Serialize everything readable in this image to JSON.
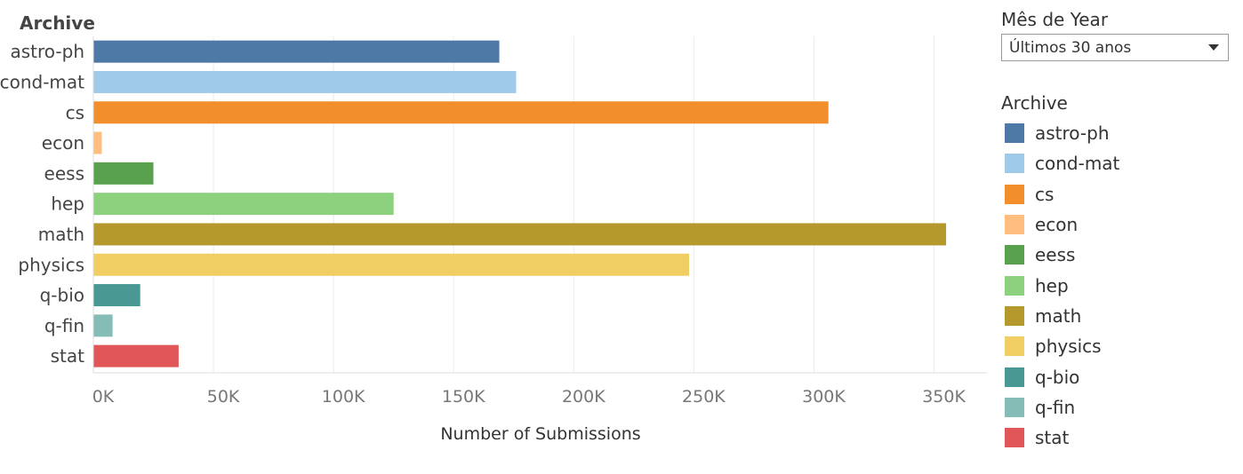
{
  "filter": {
    "title": "Mês de Year",
    "selected": "Últimos 30 anos"
  },
  "legend": {
    "title": "Archive",
    "items": [
      {
        "label": "astro-ph",
        "color": "#4e79a7"
      },
      {
        "label": "cond-mat",
        "color": "#a0cbe8"
      },
      {
        "label": "cs",
        "color": "#f28e2b"
      },
      {
        "label": "econ",
        "color": "#ffbe7d"
      },
      {
        "label": "eess",
        "color": "#59a14f"
      },
      {
        "label": "hep",
        "color": "#8cd17d"
      },
      {
        "label": "math",
        "color": "#b6992d"
      },
      {
        "label": "physics",
        "color": "#f1ce63"
      },
      {
        "label": "q-bio",
        "color": "#499894"
      },
      {
        "label": "q-fin",
        "color": "#86bcb6"
      },
      {
        "label": "stat",
        "color": "#e15759"
      }
    ]
  },
  "chart_data": {
    "type": "bar",
    "orientation": "horizontal",
    "row_header": "Archive",
    "categories": [
      "astro-ph",
      "cond-mat",
      "cs",
      "econ",
      "eess",
      "hep",
      "math",
      "physics",
      "q-bio",
      "q-fin",
      "stat"
    ],
    "values": [
      169000,
      176000,
      306000,
      3500,
      25000,
      125000,
      355000,
      248000,
      19500,
      8000,
      35500
    ],
    "colors": [
      "#4e79a7",
      "#a0cbe8",
      "#f28e2b",
      "#ffbe7d",
      "#59a14f",
      "#8cd17d",
      "#b6992d",
      "#f1ce63",
      "#499894",
      "#86bcb6",
      "#e15759"
    ],
    "xlabel": "Number of Submissions",
    "xlim": [
      0,
      372000
    ],
    "xticks": [
      0,
      50000,
      100000,
      150000,
      200000,
      250000,
      300000,
      350000
    ],
    "xtick_labels": [
      "0K",
      "50K",
      "100K",
      "150K",
      "200K",
      "250K",
      "300K",
      "350K"
    ],
    "grid": true
  }
}
